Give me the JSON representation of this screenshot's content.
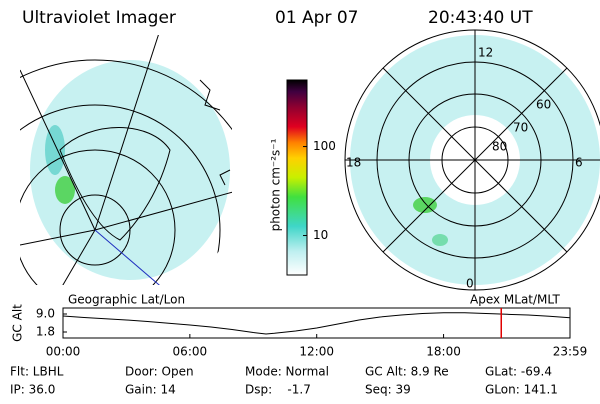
{
  "header": {
    "instrument": "Ultraviolet Imager",
    "date": "01 Apr 07",
    "time": "20:43:40 UT"
  },
  "geo_panel": {
    "label": "Geographic Lat/Lon"
  },
  "polar_panel": {
    "label": "Apex MLat/MLT",
    "mlt_labels": [
      "12",
      "18",
      "6",
      "0"
    ],
    "lat_labels": [
      "80",
      "70",
      "60"
    ]
  },
  "colorbar": {
    "label": "photon cm⁻²s⁻¹",
    "log": true,
    "lim": [
      3.6,
      560
    ],
    "ticks": [
      10,
      100
    ]
  },
  "chart_data": {
    "type": "line",
    "ylabel": "GC Alt",
    "x": [
      0,
      1,
      2,
      3,
      4,
      5,
      6,
      7,
      8,
      9,
      9.6,
      10,
      11,
      12,
      13,
      14,
      15,
      16,
      17,
      18,
      19,
      20,
      21,
      22,
      23,
      23.98
    ],
    "values": [
      8.2,
      7.6,
      7.1,
      6.6,
      6.0,
      5.3,
      4.6,
      3.8,
      2.8,
      1.6,
      1.0,
      1.3,
      2.2,
      3.4,
      5.0,
      6.6,
      7.8,
      8.6,
      9.2,
      9.5,
      9.5,
      9.2,
      8.9,
      8.6,
      8.1,
      7.5
    ],
    "color": "#000000",
    "xlim": [
      0,
      23.98
    ],
    "xticks": [
      {
        "value": 0,
        "label": "00:00"
      },
      {
        "value": 6,
        "label": "06:00"
      },
      {
        "value": 12,
        "label": "12:00"
      },
      {
        "value": 18,
        "label": "18:00"
      },
      {
        "value": 23.98,
        "label": "23:59"
      }
    ],
    "ylim": [
      -0.6,
      11.4
    ],
    "yticks": [
      {
        "value": 9,
        "label": "9.0"
      },
      1.8
    ],
    "marker_x": 20.728,
    "marker_color": "#e00000"
  },
  "footer": [
    [
      "Flt: LBHL",
      "Door: Open",
      "Mode: Normal",
      "GC Alt: 8.9 Re",
      "GLat: -69.4"
    ],
    [
      "IP: 36.0",
      "Gain: 14",
      "Dsp:    -1.7",
      "Seq: 39",
      "GLon: 141.1"
    ]
  ]
}
